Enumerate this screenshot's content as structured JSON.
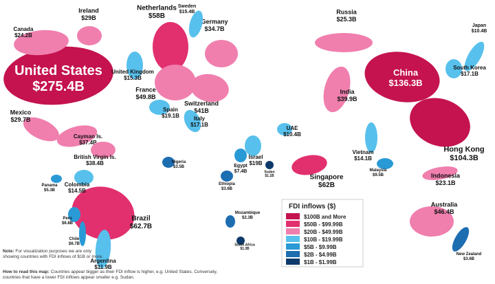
{
  "countries": [
    {
      "name": "United States",
      "value": "$275.4B",
      "color": "#c4134f"
    },
    {
      "name": "China",
      "value": "$136.3B",
      "color": "#c4134f"
    },
    {
      "name": "Hong Kong",
      "value": "$104.3B",
      "color": "#c4134f"
    },
    {
      "name": "Netherlands",
      "value": "$58B",
      "color": "#e2306f"
    },
    {
      "name": "Singapore",
      "value": "$62B",
      "color": "#e2306f"
    },
    {
      "name": "Brazil",
      "value": "$62.7B",
      "color": "#e2306f"
    },
    {
      "name": "Canada",
      "value": "$24.2B",
      "color": "#f07fae"
    },
    {
      "name": "Ireland",
      "value": "$29B",
      "color": "#f07fae"
    },
    {
      "name": "Germany",
      "value": "$34.7B",
      "color": "#f07fae"
    },
    {
      "name": "Russia",
      "value": "$25.3B",
      "color": "#f07fae"
    },
    {
      "name": "France",
      "value": "$49.8B",
      "color": "#f07fae"
    },
    {
      "name": "Switzerland",
      "value": "$41B",
      "color": "#f07fae"
    },
    {
      "name": "India",
      "value": "$39.9B",
      "color": "#f07fae"
    },
    {
      "name": "Mexico",
      "value": "$29.7B",
      "color": "#f07fae"
    },
    {
      "name": "Cayman Is.",
      "value": "$37.4B",
      "color": "#f07fae"
    },
    {
      "name": "British Virgin Is.",
      "value": "$38.4B",
      "color": "#f07fae"
    },
    {
      "name": "Indonesia",
      "value": "$23.1B",
      "color": "#f07fae"
    },
    {
      "name": "Australia",
      "value": "$46.4B",
      "color": "#f07fae"
    },
    {
      "name": "Sweden",
      "value": "$15.4B",
      "color": "#58c0ec"
    },
    {
      "name": "United Kingdom",
      "value": "$15.3B",
      "color": "#58c0ec"
    },
    {
      "name": "Japan",
      "value": "$10.4B",
      "color": "#58c0ec"
    },
    {
      "name": "South Korea",
      "value": "$17.1B",
      "color": "#58c0ec"
    },
    {
      "name": "Spain",
      "value": "$19.1B",
      "color": "#58c0ec"
    },
    {
      "name": "Italy",
      "value": "$17.1B",
      "color": "#58c0ec"
    },
    {
      "name": "Israel",
      "value": "$19B",
      "color": "#58c0ec"
    },
    {
      "name": "UAE",
      "value": "$10.4B",
      "color": "#58c0ec"
    },
    {
      "name": "Colombia",
      "value": "$14.5B",
      "color": "#58c0ec"
    },
    {
      "name": "Vietnam",
      "value": "$14.1B",
      "color": "#58c0ec"
    },
    {
      "name": "Argentina",
      "value": "$11.9B",
      "color": "#58c0ec"
    },
    {
      "name": "Egypt",
      "value": "$7.4B",
      "color": "#2a9ad6"
    },
    {
      "name": "Peru",
      "value": "$6.8B",
      "color": "#2a9ad6"
    },
    {
      "name": "Chile",
      "value": "$6.7B",
      "color": "#2a9ad6"
    },
    {
      "name": "Panama",
      "value": "$5.3B",
      "color": "#2a9ad6"
    },
    {
      "name": "Malaysia",
      "value": "$9.5B",
      "color": "#2a9ad6"
    },
    {
      "name": "Nigeria",
      "value": "$3.5B",
      "color": "#1d6db1"
    },
    {
      "name": "Ethiopia",
      "value": "$3.6B",
      "color": "#1d6db1"
    },
    {
      "name": "Mozambique",
      "value": "$2.3B",
      "color": "#1d6db1"
    },
    {
      "name": "New Zealand",
      "value": "$3.6B",
      "color": "#1d6db1"
    },
    {
      "name": "South Africa",
      "value": "$1.3B",
      "color": "#0e3a6b"
    },
    {
      "name": "Sudan",
      "value": "$1.1B",
      "color": "#0e3a6b"
    }
  ],
  "legend": {
    "title": "FDI inflows ($)",
    "items": [
      {
        "label": "$100B and More",
        "color": "#c4134f"
      },
      {
        "label": "$50B - $99.99B",
        "color": "#e2306f"
      },
      {
        "label": "$20B - $49.99B",
        "color": "#f07fae"
      },
      {
        "label": "$10B - $19.99B",
        "color": "#58c0ec"
      },
      {
        "label": "$5B - $9.99B",
        "color": "#2a9ad6"
      },
      {
        "label": "$2B - $4.99B",
        "color": "#1d6db1"
      },
      {
        "label": "$1B - $1.99B",
        "color": "#0e3a6b"
      }
    ]
  },
  "notes": {
    "note_label": "Note:",
    "note": "For visualization purposes we are only showing countries with FDI inflows of $1B or more.",
    "read_label": "How to read this map:",
    "read": "Countries appear bigger as their FDI inflow is higher, e.g. United States. Conversely, countries that have a lower FDI inflows appear smaller e.g. Sudan."
  }
}
